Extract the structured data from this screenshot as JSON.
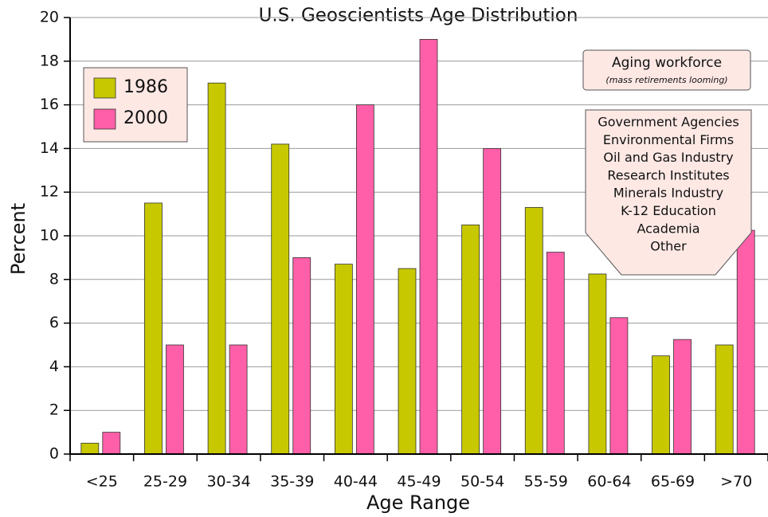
{
  "chart_data": {
    "type": "bar",
    "title": "U.S. Geoscientists Age Distribution",
    "x_label": "Age Range",
    "y_label": "Percent",
    "categories": [
      "<25",
      "25-29",
      "30-34",
      "35-39",
      "40-44",
      "45-49",
      "50-54",
      "55-59",
      "60-64",
      "65-69",
      ">70"
    ],
    "series": [
      {
        "name": "1986",
        "color": "#c8c800",
        "values": [
          0.5,
          11.5,
          17,
          14.2,
          8.7,
          8.5,
          10.5,
          11.3,
          8.25,
          4.5,
          5
        ]
      },
      {
        "name": "2000",
        "color": "#ff5fa8",
        "values": [
          1,
          5,
          5,
          9,
          16,
          19,
          14,
          9.25,
          6.25,
          5.25,
          10.25
        ]
      }
    ],
    "ylim": [
      0,
      20
    ],
    "yticks": [
      0,
      2,
      4,
      6,
      8,
      10,
      12,
      14,
      16,
      18,
      20
    ],
    "grid": true,
    "legend": "upper left",
    "annotation": {
      "title": "Aging workforce",
      "subtitle": "(mass retirements looming)"
    },
    "sectors": [
      "Government Agencies",
      "Environmental Firms",
      "Oil and Gas Industry",
      "Research Institutes",
      "Minerals Industry",
      "K-12 Education",
      "Academia",
      "Other"
    ]
  }
}
